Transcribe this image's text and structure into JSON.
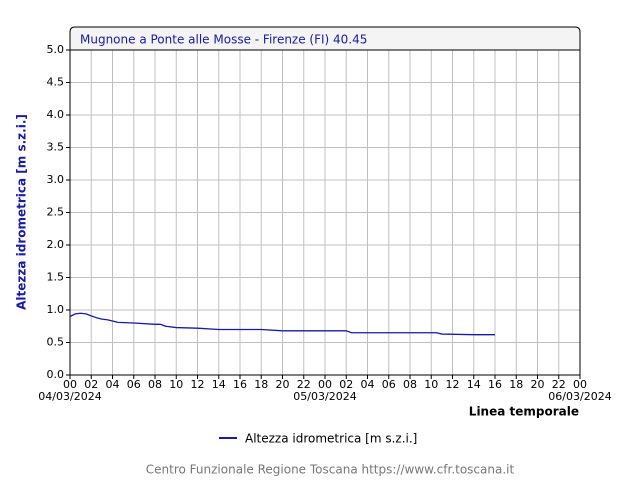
{
  "chart_data": {
    "type": "line",
    "title": "Mugnone a Ponte alle Mosse - Firenze (FI) 40.45",
    "y_label": "Altezza idrometrica [m s.z.i.]",
    "x_label": "Linea temporale",
    "footer": "Centro Funzionale Regione Toscana https://www.cfr.toscana.it",
    "xlim": [
      0,
      48
    ],
    "ylim": [
      0,
      5
    ],
    "grid": true,
    "xticks": [
      {
        "value": 0,
        "label": "00"
      },
      {
        "value": 2,
        "label": "02"
      },
      {
        "value": 4,
        "label": "04"
      },
      {
        "value": 6,
        "label": "06"
      },
      {
        "value": 8,
        "label": "08"
      },
      {
        "value": 10,
        "label": "10"
      },
      {
        "value": 12,
        "label": "12"
      },
      {
        "value": 14,
        "label": "14"
      },
      {
        "value": 16,
        "label": "16"
      },
      {
        "value": 18,
        "label": "18"
      },
      {
        "value": 20,
        "label": "20"
      },
      {
        "value": 22,
        "label": "22"
      },
      {
        "value": 24,
        "label": "00"
      },
      {
        "value": 26,
        "label": "02"
      },
      {
        "value": 28,
        "label": "04"
      },
      {
        "value": 30,
        "label": "06"
      },
      {
        "value": 32,
        "label": "08"
      },
      {
        "value": 34,
        "label": "10"
      },
      {
        "value": 36,
        "label": "12"
      },
      {
        "value": 38,
        "label": "14"
      },
      {
        "value": 40,
        "label": "16"
      },
      {
        "value": 42,
        "label": "18"
      },
      {
        "value": 44,
        "label": "20"
      },
      {
        "value": 46,
        "label": "22"
      },
      {
        "value": 48,
        "label": "00"
      }
    ],
    "date_ticks": [
      {
        "value": 0,
        "label": "04/03/2024"
      },
      {
        "value": 24,
        "label": "05/03/2024"
      },
      {
        "value": 48,
        "label": "06/03/2024"
      }
    ],
    "yticks": [
      {
        "value": 0,
        "label": "0.0"
      },
      {
        "value": 0.5,
        "label": "0.5"
      },
      {
        "value": 1,
        "label": "1.0"
      },
      {
        "value": 1.5,
        "label": "1.5"
      },
      {
        "value": 2,
        "label": "2.0"
      },
      {
        "value": 2.5,
        "label": "2.5"
      },
      {
        "value": 3,
        "label": "3.0"
      },
      {
        "value": 3.5,
        "label": "3.5"
      },
      {
        "value": 4,
        "label": "4.0"
      },
      {
        "value": 4.5,
        "label": "4.5"
      },
      {
        "value": 5,
        "label": "5.0"
      }
    ],
    "series": [
      {
        "name": "Altezza idrometrica [m s.z.i.]",
        "color": "#1a1aa6",
        "x": [
          0,
          0.5,
          1,
          1.5,
          2,
          2.5,
          3,
          3.5,
          4,
          4.5,
          6,
          8,
          8.5,
          9,
          10,
          12,
          14,
          18,
          20,
          24,
          26,
          26.5,
          28,
          32,
          34,
          34.5,
          35,
          38,
          40
        ],
        "values": [
          0.9,
          0.94,
          0.95,
          0.94,
          0.91,
          0.88,
          0.86,
          0.85,
          0.83,
          0.81,
          0.8,
          0.78,
          0.78,
          0.75,
          0.73,
          0.72,
          0.7,
          0.7,
          0.68,
          0.68,
          0.68,
          0.65,
          0.65,
          0.65,
          0.65,
          0.65,
          0.63,
          0.62,
          0.62
        ]
      }
    ]
  }
}
